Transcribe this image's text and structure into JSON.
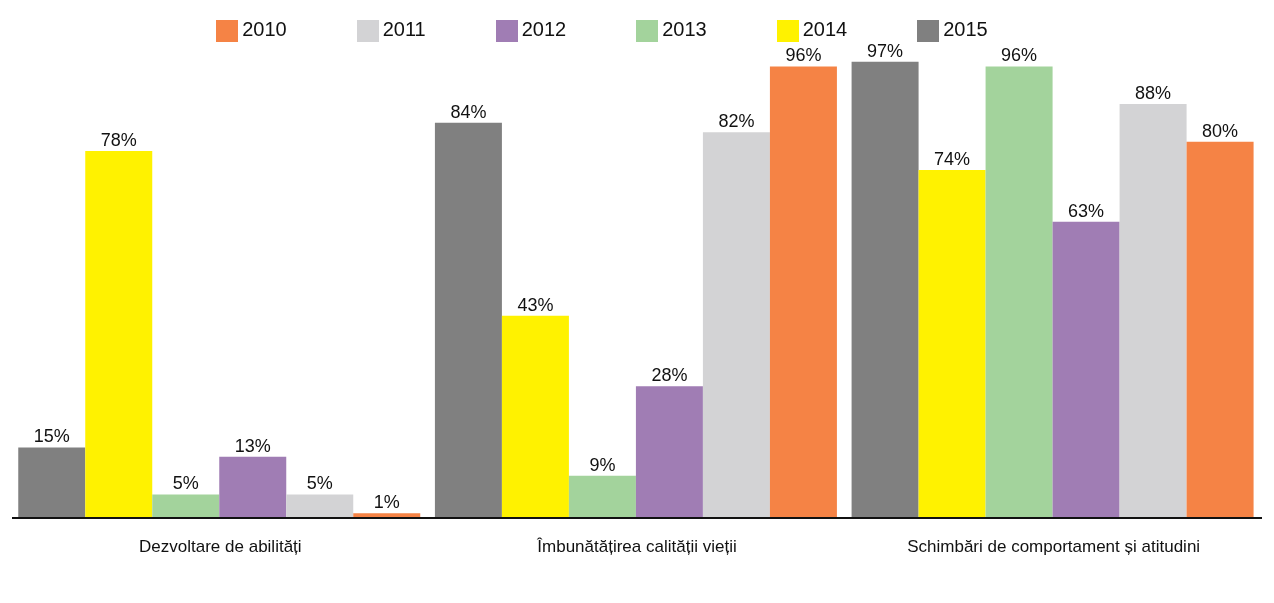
{
  "chart_data": {
    "type": "bar",
    "categories": [
      "Dezvoltare de abilități",
      "Îmbunătățirea calității vieții",
      "Schimbări de comportament și atitudini"
    ],
    "series": [
      {
        "name": "2015",
        "color": "#808080",
        "values": [
          15,
          84,
          97
        ],
        "value_labels": [
          "15%",
          "84%",
          "97%"
        ]
      },
      {
        "name": "2014",
        "color": "#fff200",
        "values": [
          78,
          43,
          74
        ],
        "value_labels": [
          "78%",
          "43%",
          "74%"
        ]
      },
      {
        "name": "2013",
        "color": "#a3d39c",
        "values": [
          5,
          9,
          96
        ],
        "value_labels": [
          "5%",
          "9%",
          "96%"
        ]
      },
      {
        "name": "2012",
        "color": "#a07db4",
        "values": [
          13,
          28,
          63
        ],
        "value_labels": [
          "13%",
          "28%",
          "63%"
        ]
      },
      {
        "name": "2011",
        "color": "#d3d3d5",
        "values": [
          5,
          82,
          88
        ],
        "value_labels": [
          "5%",
          "82%",
          "88%"
        ]
      },
      {
        "name": "2010",
        "color": "#f58345",
        "values": [
          1,
          96,
          80
        ],
        "value_labels": [
          "1%",
          "96%",
          "80%"
        ]
      }
    ],
    "legend": "top",
    "grid": false
  }
}
